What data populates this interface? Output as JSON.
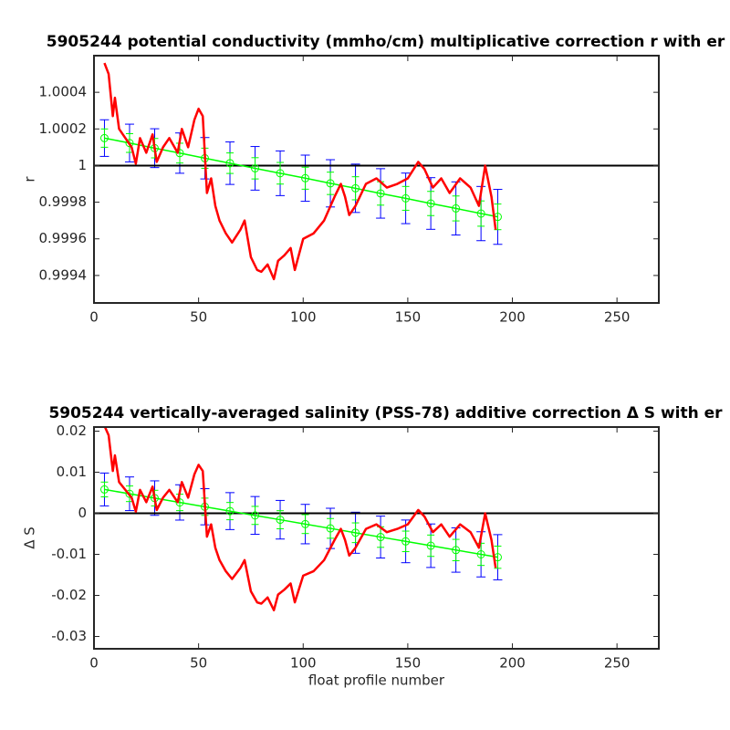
{
  "chart_data": [
    {
      "type": "line",
      "title": "5905244 potential conductivity (mmho/cm) multiplicative correction r with er",
      "ylabel": "r",
      "xlim": [
        0,
        270
      ],
      "xticks": [
        0,
        50,
        100,
        150,
        200,
        250
      ],
      "ylim": [
        0.99925,
        1.0006
      ],
      "yticks": [
        0.9994,
        0.9996,
        0.9998,
        1,
        1.0002,
        1.0004
      ],
      "reference": 1,
      "reference_color": "#000000",
      "series": [
        {
          "color": "#ff0000",
          "x": [
            5,
            7,
            9,
            10,
            12,
            15,
            18,
            20,
            22,
            25,
            28,
            30,
            33,
            36,
            40,
            42,
            45,
            48,
            50,
            52,
            54,
            56,
            58,
            60,
            63,
            66,
            70,
            72,
            75,
            78,
            80,
            83,
            86,
            88,
            91,
            94,
            96,
            100,
            105,
            110,
            115,
            118,
            120,
            122,
            125,
            130,
            135,
            140,
            145,
            150,
            155,
            158,
            162,
            166,
            170,
            175,
            180,
            184,
            187,
            190,
            192
          ],
          "values": [
            1.00056,
            1.0005,
            1.00027,
            1.00037,
            1.0002,
            1.00015,
            1.0001,
            1.00001,
            1.00015,
            1.00007,
            1.00017,
            1.00002,
            1.0001,
            1.00015,
            1.00007,
            1.0002,
            1.0001,
            1.00025,
            1.00031,
            1.00027,
            0.99985,
            0.99993,
            0.99978,
            0.9997,
            0.99963,
            0.99958,
            0.99965,
            0.9997,
            0.9995,
            0.99943,
            0.99942,
            0.99946,
            0.99938,
            0.99948,
            0.99951,
            0.99955,
            0.99943,
            0.9996,
            0.99963,
            0.9997,
            0.99983,
            0.9999,
            0.99983,
            0.99973,
            0.99978,
            0.9999,
            0.99993,
            0.99988,
            0.9999,
            0.99993,
            1.00002,
            0.99998,
            0.99988,
            0.99993,
            0.99985,
            0.99993,
            0.99988,
            0.99978,
            1,
            0.99983,
            0.99965
          ]
        }
      ],
      "fit": {
        "color": "#0000ff",
        "inner_color": "#00ff00",
        "x": [
          5,
          17,
          29,
          41,
          53,
          65,
          77,
          89,
          101,
          113,
          125,
          137,
          149,
          161,
          173,
          185,
          193
        ],
        "values": [
          1.00015,
          1.000123,
          1.000095,
          1.000068,
          1.00004,
          1.000013,
          0.999985,
          0.999958,
          0.999931,
          0.999903,
          0.999876,
          0.999848,
          0.999821,
          0.999793,
          0.999766,
          0.999738,
          0.99972
        ],
        "error": [
          0.0001,
          0.000103,
          0.000106,
          0.00011,
          0.000113,
          0.000116,
          0.000119,
          0.000122,
          0.000126,
          0.000129,
          0.000132,
          0.000135,
          0.000138,
          0.000141,
          0.000145,
          0.000148,
          0.00015
        ],
        "inner_error": [
          5e-05,
          5.1e-05,
          5.3e-05,
          5.4e-05,
          5.5e-05,
          5.6e-05,
          5.8e-05,
          5.9e-05,
          6e-05,
          6.1e-05,
          6.3e-05,
          6.4e-05,
          6.5e-05,
          6.6e-05,
          6.8e-05,
          6.9e-05,
          7e-05
        ]
      }
    },
    {
      "type": "line",
      "title": "5905244 vertically-averaged salinity (PSS-78) additive correction Δ S with er",
      "ylabel": "Δ S",
      "xlabel": "float profile number",
      "xlim": [
        0,
        270
      ],
      "xticks": [
        0,
        50,
        100,
        150,
        200,
        250
      ],
      "ylim": [
        -0.033,
        0.021
      ],
      "yticks": [
        -0.03,
        -0.02,
        -0.01,
        0,
        0.01,
        0.02
      ],
      "reference": 0,
      "reference_color": "#000000",
      "series": [
        {
          "color": "#ff0000",
          "x": [
            5,
            7,
            9,
            10,
            12,
            15,
            18,
            20,
            22,
            25,
            28,
            30,
            33,
            36,
            40,
            42,
            45,
            48,
            50,
            52,
            54,
            56,
            58,
            60,
            63,
            66,
            70,
            72,
            75,
            78,
            80,
            83,
            86,
            88,
            91,
            94,
            96,
            100,
            105,
            110,
            115,
            118,
            120,
            122,
            125,
            130,
            135,
            140,
            145,
            150,
            155,
            158,
            162,
            166,
            170,
            175,
            180,
            184,
            187,
            190,
            192
          ],
          "values": [
            0.0213,
            0.019,
            0.0103,
            0.0141,
            0.0076,
            0.0057,
            0.0038,
            0.0004,
            0.0057,
            0.0027,
            0.0065,
            0.0008,
            0.0038,
            0.0057,
            0.0027,
            0.0076,
            0.0038,
            0.0095,
            0.0118,
            0.0103,
            -0.0057,
            -0.0027,
            -0.0084,
            -0.0114,
            -0.0141,
            -0.016,
            -0.0133,
            -0.0114,
            -0.019,
            -0.0217,
            -0.022,
            -0.0205,
            -0.0236,
            -0.0198,
            -0.0186,
            -0.0171,
            -0.0217,
            -0.0152,
            -0.0141,
            -0.0114,
            -0.0065,
            -0.0038,
            -0.0065,
            -0.0103,
            -0.0084,
            -0.0038,
            -0.0027,
            -0.0046,
            -0.0038,
            -0.0027,
            0.0008,
            -0.0008,
            -0.0046,
            -0.0027,
            -0.0057,
            -0.0027,
            -0.0046,
            -0.0084,
            0,
            -0.0065,
            -0.0133
          ]
        }
      ],
      "fit": {
        "color": "#0000ff",
        "inner_color": "#00ff00",
        "x": [
          5,
          17,
          29,
          41,
          53,
          65,
          77,
          89,
          101,
          113,
          125,
          137,
          149,
          161,
          173,
          185,
          193
        ],
        "values": [
          0.0058,
          0.00475,
          0.0037,
          0.00264,
          0.00159,
          0.00053,
          -0.00052,
          -0.00157,
          -0.00263,
          -0.00368,
          -0.00474,
          -0.00579,
          -0.00684,
          -0.0079,
          -0.00895,
          -0.01,
          -0.0107
        ],
        "error": [
          0.004,
          0.0041,
          0.0042,
          0.0043,
          0.0044,
          0.0045,
          0.0046,
          0.0047,
          0.0048,
          0.0049,
          0.005,
          0.0051,
          0.0052,
          0.0053,
          0.0054,
          0.0055,
          0.0055
        ],
        "inner_error": [
          0.0018,
          0.0019,
          0.0019,
          0.002,
          0.0021,
          0.0021,
          0.0022,
          0.0022,
          0.0023,
          0.0024,
          0.0024,
          0.0025,
          0.0025,
          0.0026,
          0.0026,
          0.0027,
          0.0027
        ]
      }
    }
  ]
}
